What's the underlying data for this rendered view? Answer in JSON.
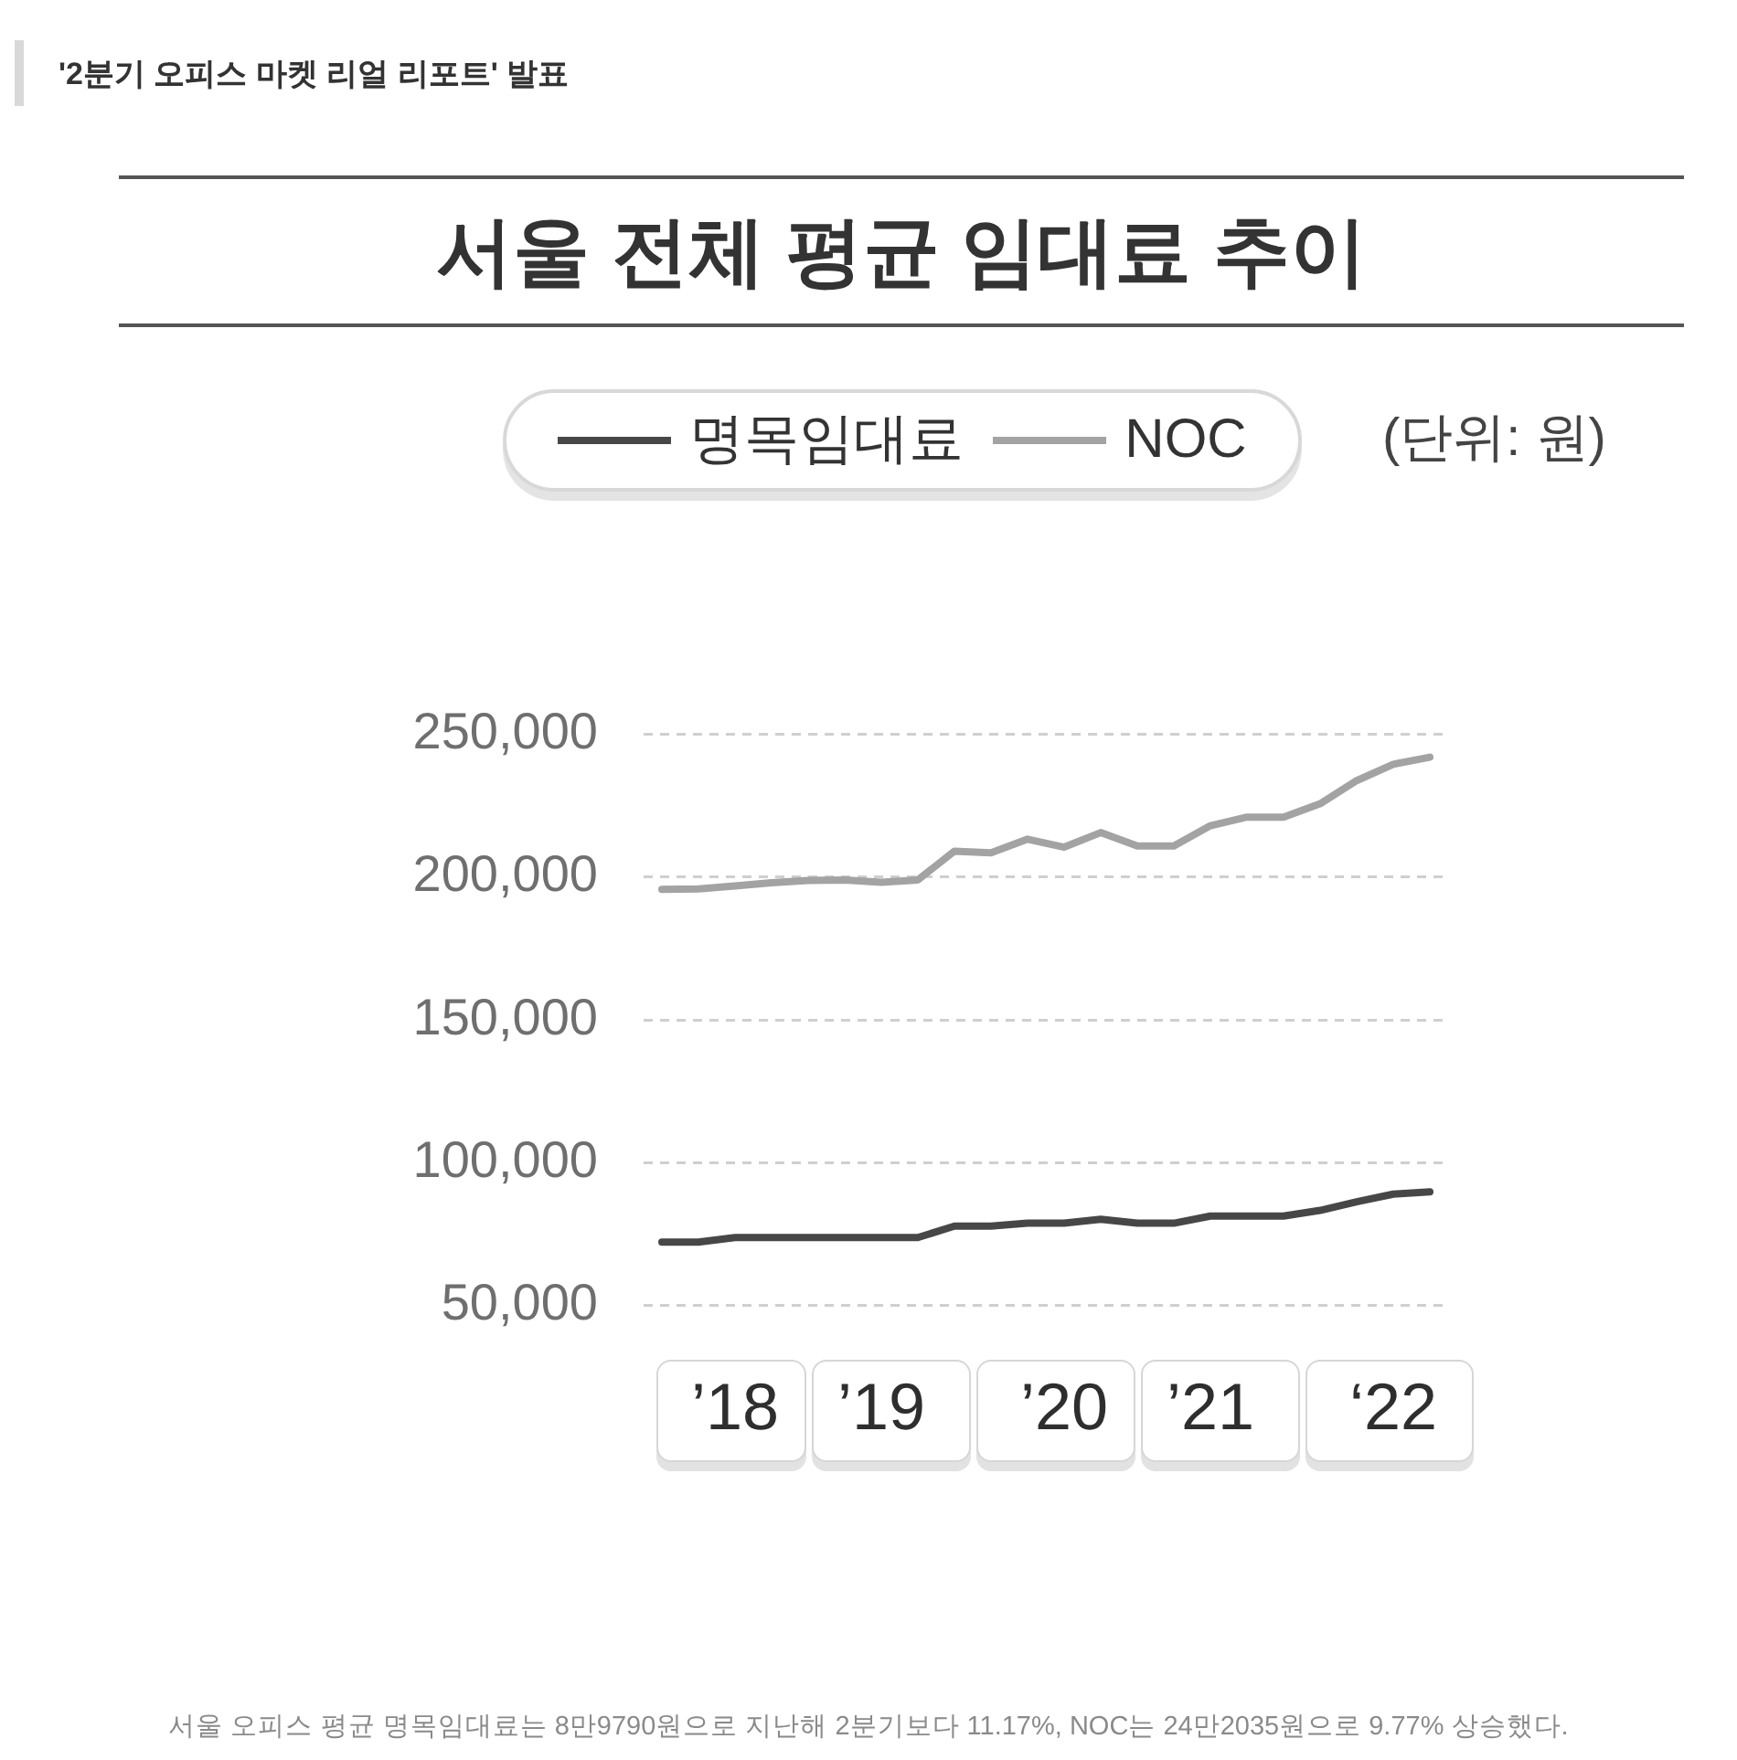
{
  "chart_data": {
    "type": "line",
    "title": "서울 전체 평균 임대료 추이",
    "ylabel": "(단위: 원)",
    "annotations": [
      "'2분기 오피스 마켓 리얼 리포트' 발표",
      "서울 오피스 평균 명목임대료는 8만9790원으로 지난해 2분기보다 11.17%, NOC는 24만2035원으로 9.77% 상승했다."
    ],
    "categories": [
      null,
      null,
      "’18",
      null,
      null,
      null,
      "’19",
      null,
      null,
      null,
      null,
      "’20",
      null,
      null,
      null,
      "’21",
      null,
      null,
      null,
      null,
      "‘22",
      null
    ],
    "series": [
      {
        "name": "명목임대료",
        "color": "#474747",
        "values": [
          72200,
          72200,
          73800,
          73800,
          73800,
          73800,
          73800,
          73800,
          77800,
          77800,
          78800,
          78800,
          80200,
          78800,
          78800,
          81300,
          81300,
          81300,
          83300,
          86300,
          89000,
          89800
        ]
      },
      {
        "name": "NOC",
        "color": "#a3a3a3",
        "values": [
          195700,
          195900,
          196900,
          198000,
          198800,
          199000,
          198200,
          199000,
          209100,
          208500,
          213300,
          210500,
          215600,
          210900,
          210900,
          218000,
          221000,
          221000,
          225700,
          233800,
          239500,
          242000
        ]
      }
    ],
    "ylim": [
      50000,
      250000
    ],
    "yticks": [
      {
        "value": 50000,
        "label": "50,000"
      },
      {
        "value": 100000,
        "label": "100,000"
      },
      {
        "value": 150000,
        "label": "150,000"
      },
      {
        "value": 200000,
        "label": "200,000"
      },
      {
        "value": 250000,
        "label": "250,000"
      }
    ],
    "grid": "y",
    "legend": "top"
  }
}
